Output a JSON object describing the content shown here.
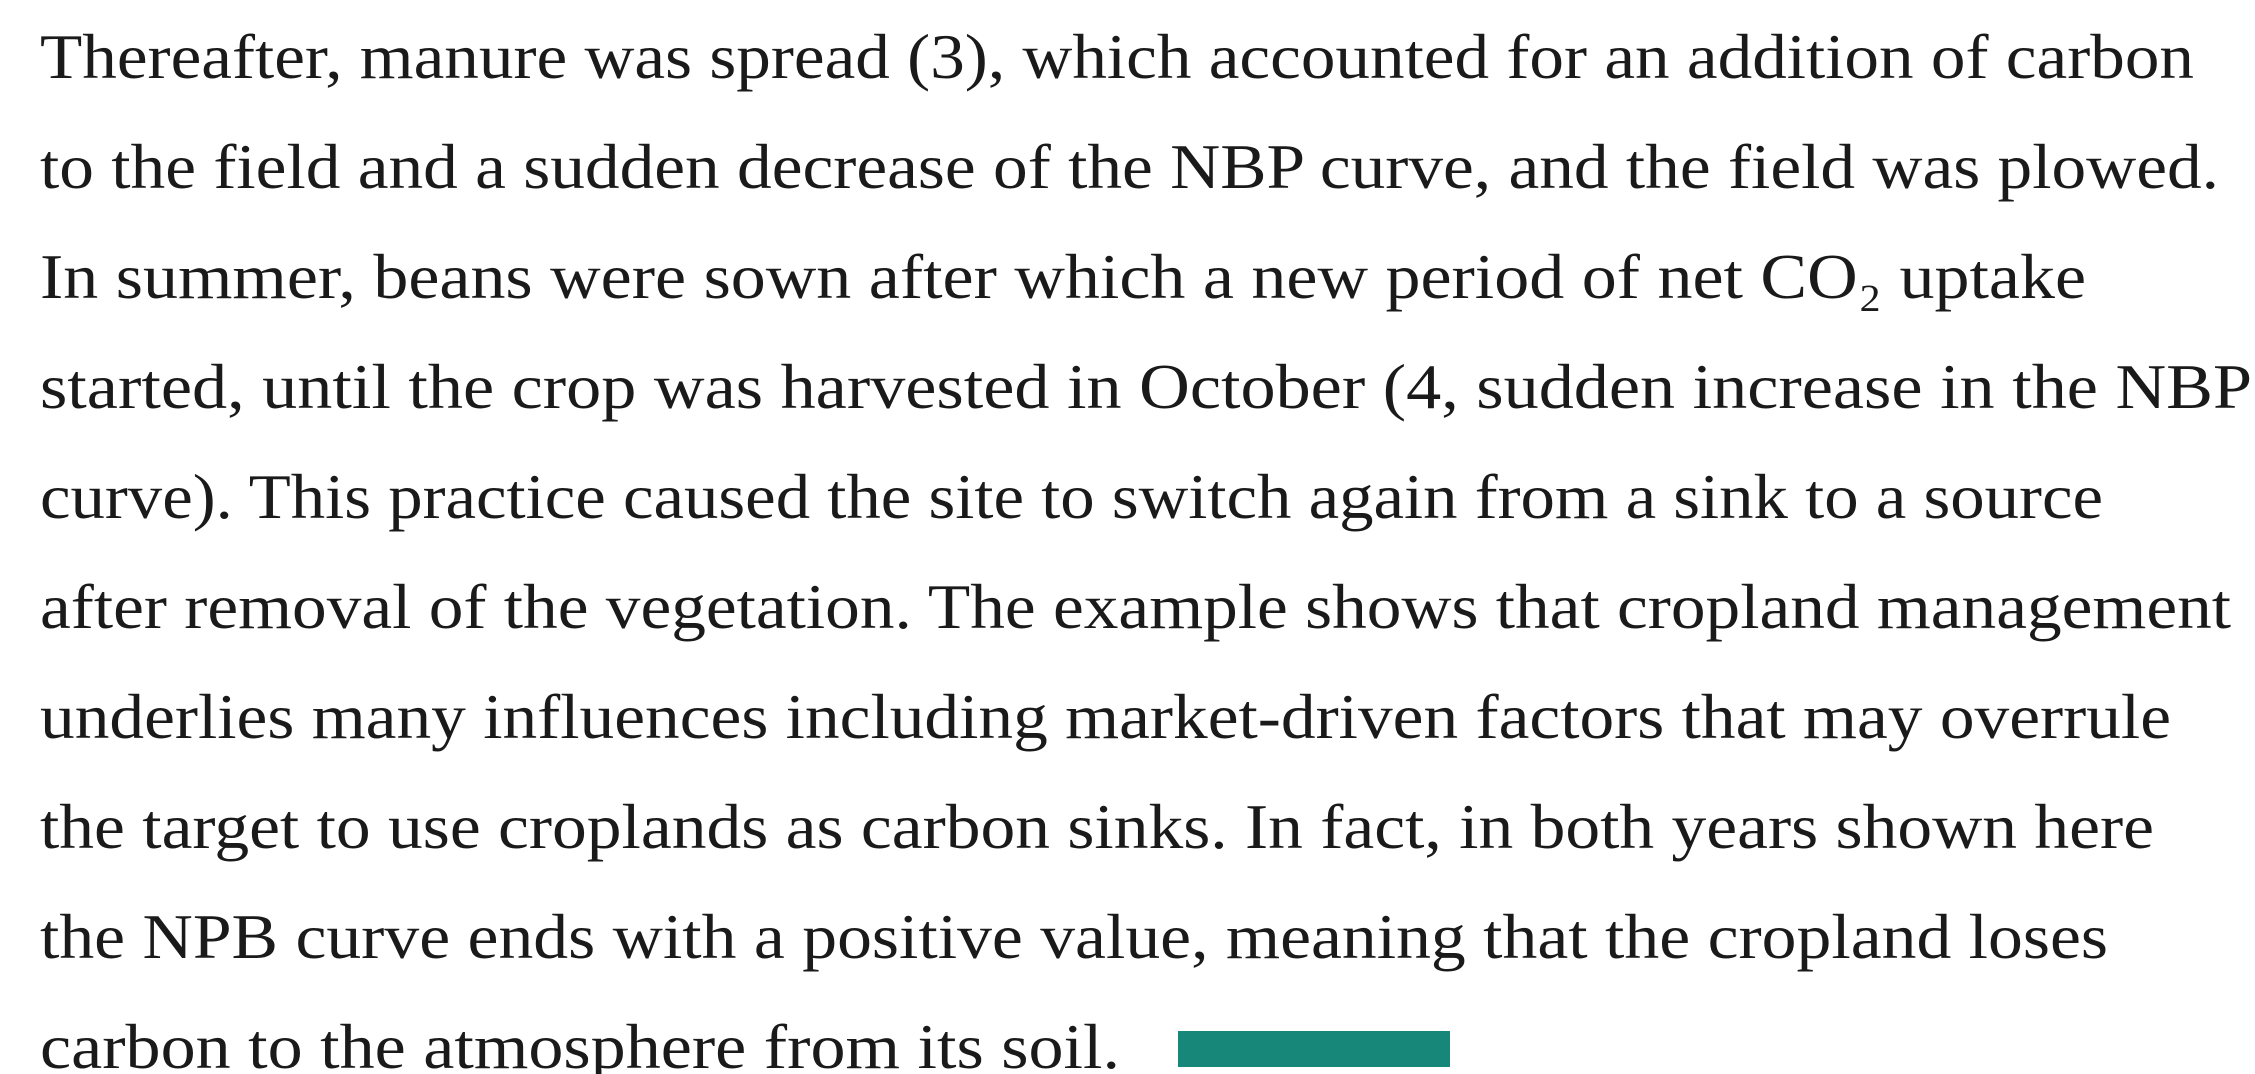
{
  "paragraph": {
    "lines": [
      "Thereafter, manure was spread (3), which accounted for an addition of carbon",
      "to the field and a sudden decrease of the NBP curve, and the field was plowed.",
      "In summer, beans were sown after which a new period of net CO₂ uptake",
      "started, until the crop was harvested in October (4, sudden increase in the NBP",
      "curve). This practice caused the site to switch again from a sink to a source",
      "after removal of the vegetation. The example shows that cropland management",
      "underlies many influences including market-driven factors that may overrule",
      "the target to use croplands as carbon sinks. In fact, in both years shown here",
      "the NPB curve ends with a positive value, meaning that the cropland loses",
      "carbon to the atmosphere from its soil."
    ]
  }
}
